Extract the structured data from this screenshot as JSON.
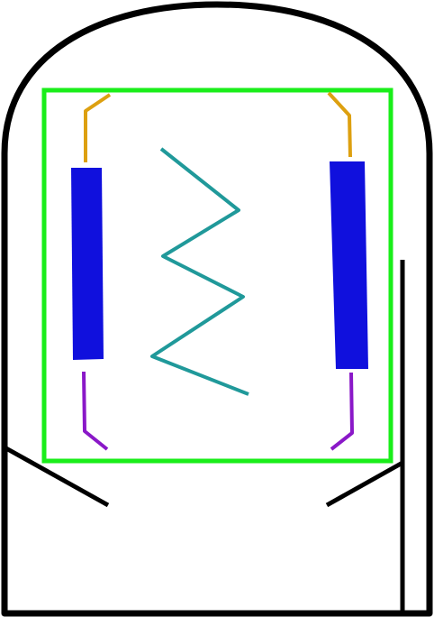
{
  "colors": {
    "envelope": "#000000",
    "frame": "#1aee1a",
    "plate": "#1010dd",
    "filament": "#20999a",
    "lead_top": "#dda010",
    "lead_bottom": "#8a18c8",
    "background": "#ffffff"
  },
  "parts": [
    "envelope",
    "frame",
    "plate-left",
    "plate-right",
    "filament",
    "lead-top-left",
    "lead-top-right",
    "lead-bottom-left",
    "lead-bottom-right",
    "base-bracket-left",
    "base-bracket-right",
    "side-rod"
  ]
}
